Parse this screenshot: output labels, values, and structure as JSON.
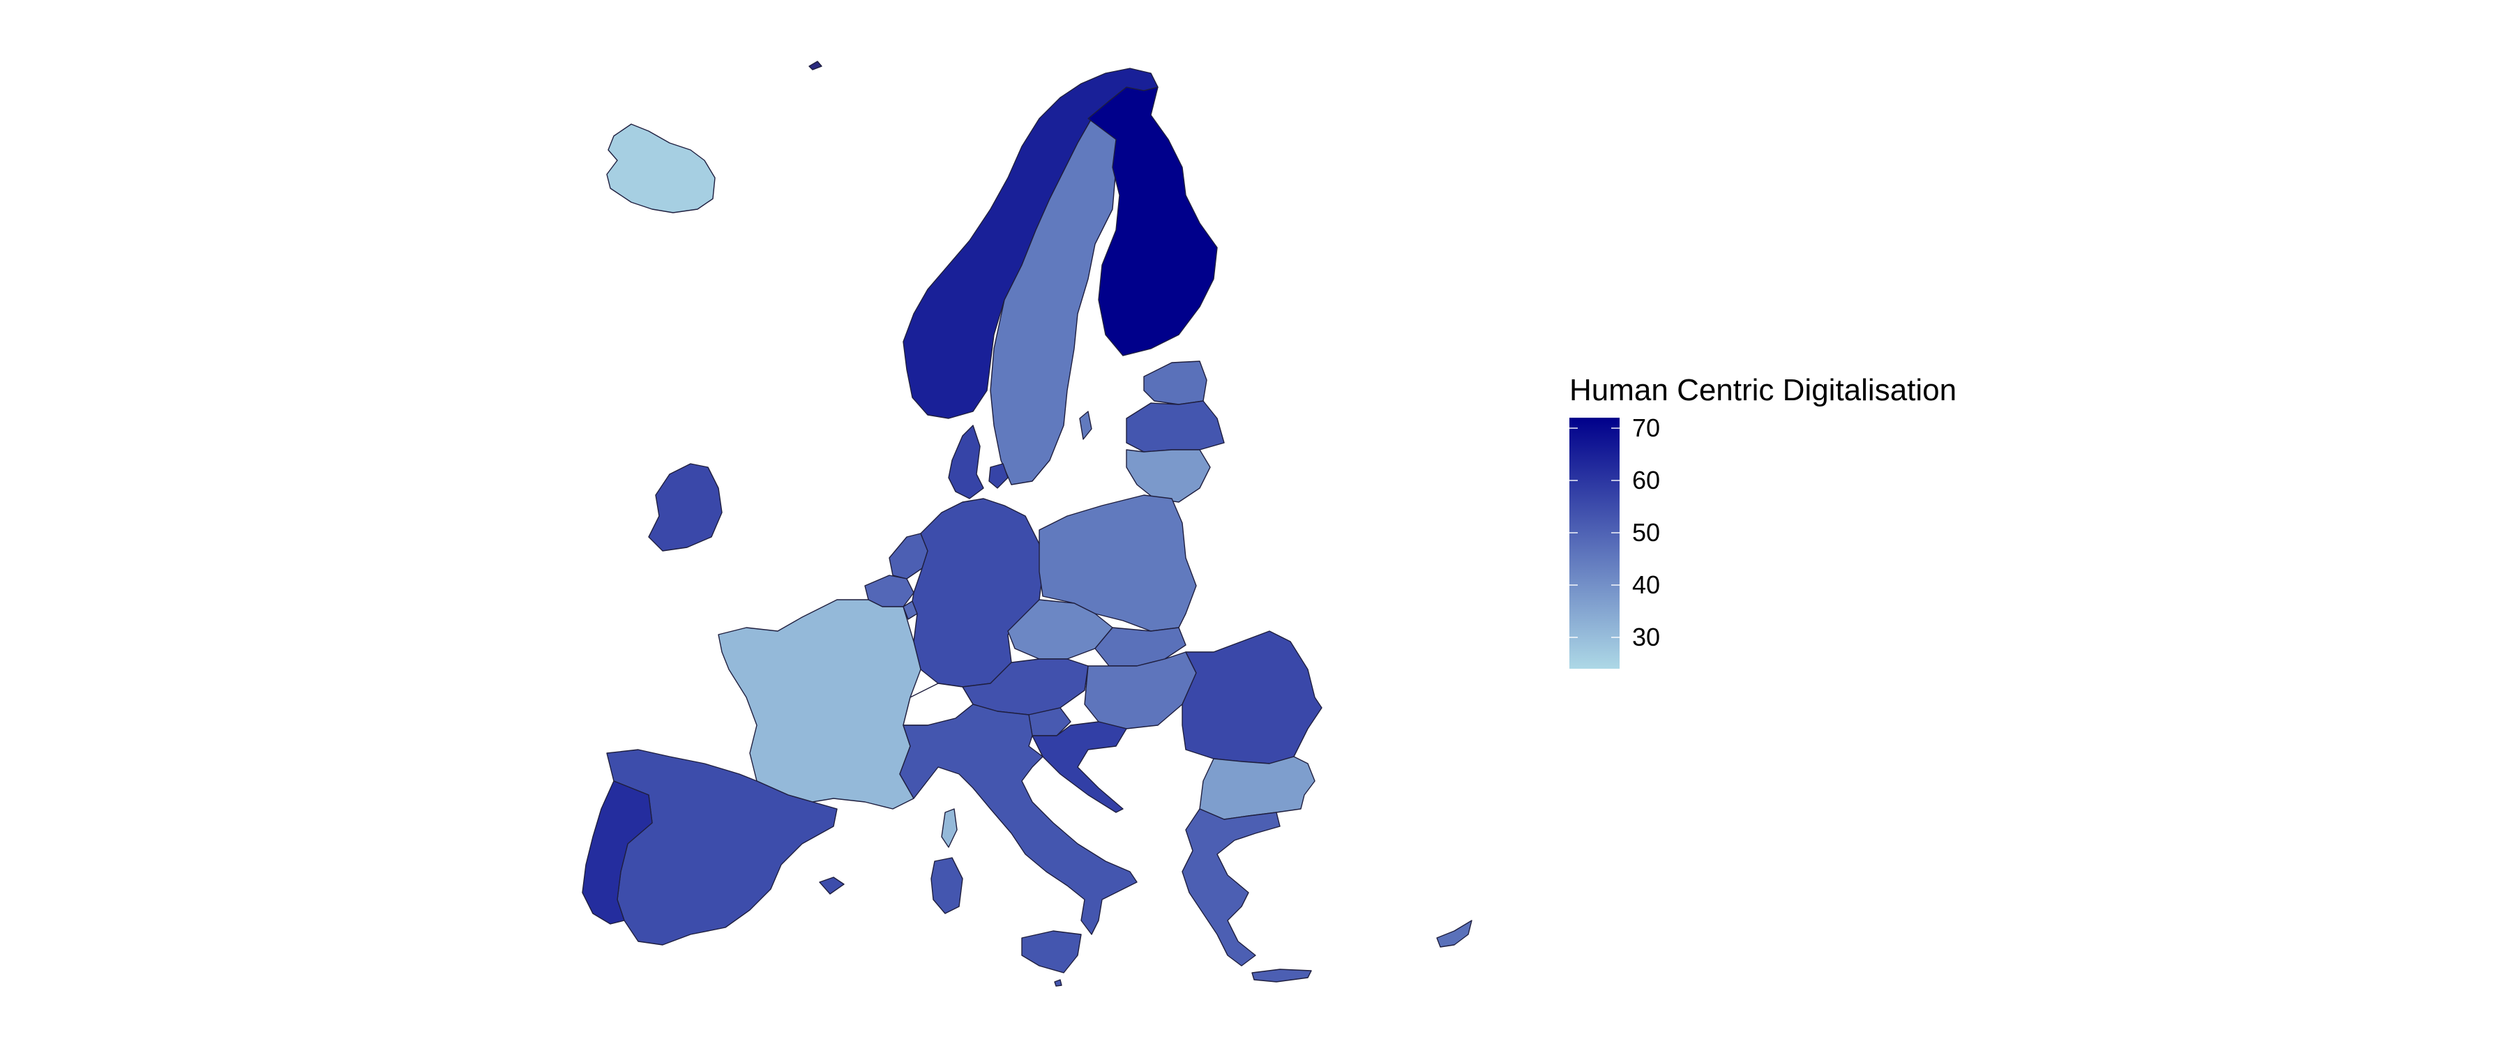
{
  "legend": {
    "title": "Human Centric Digitalisation",
    "ticks": [
      {
        "label": "70",
        "value": 70
      },
      {
        "label": "60",
        "value": 60
      },
      {
        "label": "50",
        "value": 50
      },
      {
        "label": "40",
        "value": 40
      },
      {
        "label": "30",
        "value": 30
      }
    ],
    "range": [
      24,
      72
    ]
  },
  "colors": {
    "low": "#ADD8E6",
    "high": "#00008B"
  },
  "map_data": {
    "type": "choropleth",
    "region": "Europe",
    "variable": "Human Centric Digitalisation",
    "countries": [
      {
        "id": "ISL",
        "value": 26
      },
      {
        "id": "NOR",
        "value": 65
      },
      {
        "id": "SWE",
        "value": 45
      },
      {
        "id": "FIN",
        "value": 72
      },
      {
        "id": "EST",
        "value": 47
      },
      {
        "id": "LVA",
        "value": 53
      },
      {
        "id": "LTU",
        "value": 38
      },
      {
        "id": "DNK",
        "value": 57
      },
      {
        "id": "IRL",
        "value": 56
      },
      {
        "id": "GBR",
        "value": null
      },
      {
        "id": "NLD",
        "value": 51
      },
      {
        "id": "BEL",
        "value": 49
      },
      {
        "id": "LUX",
        "value": 48
      },
      {
        "id": "DEU",
        "value": 55
      },
      {
        "id": "POL",
        "value": 45
      },
      {
        "id": "FRA",
        "value": 31
      },
      {
        "id": "CZE",
        "value": 42
      },
      {
        "id": "SVK",
        "value": 47
      },
      {
        "id": "AUT",
        "value": 54
      },
      {
        "id": "HUN",
        "value": 46
      },
      {
        "id": "SVN",
        "value": 52
      },
      {
        "id": "HRV",
        "value": 58
      },
      {
        "id": "ROU",
        "value": 56
      },
      {
        "id": "BGR",
        "value": 37
      },
      {
        "id": "ITA",
        "value": 53
      },
      {
        "id": "ESP",
        "value": 55
      },
      {
        "id": "PRT",
        "value": 62
      },
      {
        "id": "GRC",
        "value": 51
      },
      {
        "id": "CYP",
        "value": 47
      },
      {
        "id": "MLT",
        "value": 53
      }
    ]
  }
}
